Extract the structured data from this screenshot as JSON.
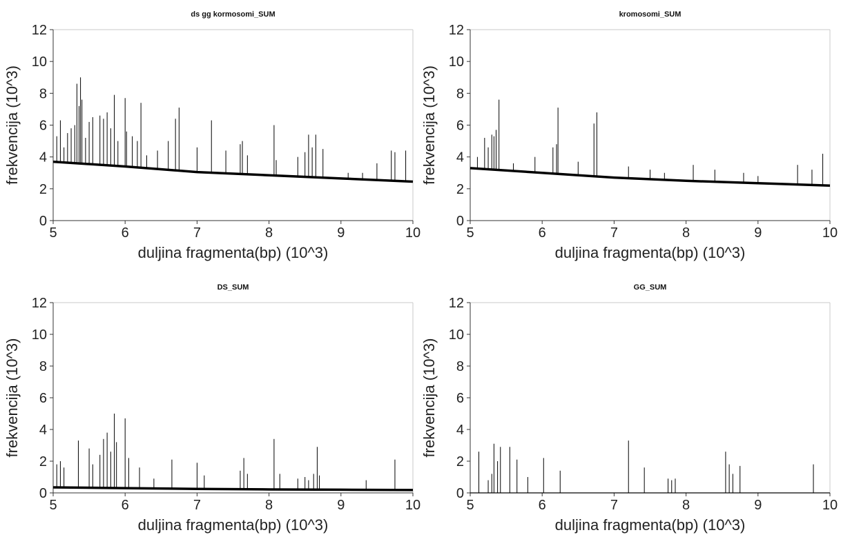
{
  "chart_data": [
    {
      "type": "line",
      "title": "ds gg kormosomi_SUM",
      "xlabel": "duljina fragmenta(bp) (10^3)",
      "ylabel": "frekvencija (10^3)",
      "xlim": [
        5,
        10
      ],
      "ylim": [
        0,
        12
      ],
      "xticks": [
        "5",
        "6",
        "7",
        "8",
        "9",
        "10"
      ],
      "yticks": [
        "0",
        "2",
        "4",
        "6",
        "8",
        "10",
        "12"
      ],
      "grid": false,
      "series": [
        {
          "color": "#000000",
          "baseline": [
            [
              5,
              3.7
            ],
            [
              6,
              3.4
            ],
            [
              7,
              3.05
            ],
            [
              8,
              2.85
            ],
            [
              9,
              2.65
            ],
            [
              10,
              2.45
            ]
          ],
          "peaks": [
            [
              5.05,
              5.3
            ],
            [
              5.1,
              6.3
            ],
            [
              5.15,
              4.6
            ],
            [
              5.2,
              5.5
            ],
            [
              5.25,
              5.8
            ],
            [
              5.3,
              6.0
            ],
            [
              5.33,
              8.6
            ],
            [
              5.36,
              7.2
            ],
            [
              5.38,
              9.0
            ],
            [
              5.4,
              7.6
            ],
            [
              5.45,
              5.2
            ],
            [
              5.5,
              6.2
            ],
            [
              5.55,
              6.5
            ],
            [
              5.65,
              6.6
            ],
            [
              5.7,
              6.4
            ],
            [
              5.75,
              6.8
            ],
            [
              5.8,
              5.8
            ],
            [
              5.85,
              7.9
            ],
            [
              5.9,
              5.0
            ],
            [
              6.0,
              7.7
            ],
            [
              6.02,
              5.6
            ],
            [
              6.1,
              5.3
            ],
            [
              6.17,
              5.0
            ],
            [
              6.22,
              7.4
            ],
            [
              6.3,
              4.1
            ],
            [
              6.45,
              4.4
            ],
            [
              6.6,
              5.0
            ],
            [
              6.7,
              6.4
            ],
            [
              6.75,
              7.1
            ],
            [
              7.0,
              4.6
            ],
            [
              7.2,
              6.3
            ],
            [
              7.4,
              4.4
            ],
            [
              7.6,
              4.8
            ],
            [
              7.63,
              5.0
            ],
            [
              7.7,
              4.1
            ],
            [
              8.07,
              6.0
            ],
            [
              8.1,
              3.8
            ],
            [
              8.4,
              4.0
            ],
            [
              8.5,
              4.3
            ],
            [
              8.55,
              5.4
            ],
            [
              8.6,
              4.6
            ],
            [
              8.65,
              5.4
            ],
            [
              8.75,
              4.5
            ],
            [
              9.1,
              3.0
            ],
            [
              9.3,
              3.0
            ],
            [
              9.5,
              3.6
            ],
            [
              9.7,
              4.4
            ],
            [
              9.75,
              4.3
            ],
            [
              9.9,
              4.4
            ]
          ]
        }
      ]
    },
    {
      "type": "line",
      "title": "kromosomi_SUM",
      "xlabel": "duljina fragmenta(bp) (10^3)",
      "ylabel": "frekvencija (10^3)",
      "xlim": [
        5,
        10
      ],
      "ylim": [
        0,
        12
      ],
      "xticks": [
        "5",
        "6",
        "7",
        "8",
        "9",
        "10"
      ],
      "yticks": [
        "0",
        "2",
        "4",
        "6",
        "8",
        "10",
        "12"
      ],
      "grid": false,
      "series": [
        {
          "color": "#000000",
          "baseline": [
            [
              5,
              3.3
            ],
            [
              6,
              3.0
            ],
            [
              7,
              2.7
            ],
            [
              8,
              2.5
            ],
            [
              9,
              2.35
            ],
            [
              10,
              2.2
            ]
          ],
          "peaks": [
            [
              5.1,
              4.0
            ],
            [
              5.2,
              5.2
            ],
            [
              5.25,
              4.6
            ],
            [
              5.3,
              5.4
            ],
            [
              5.33,
              5.3
            ],
            [
              5.36,
              5.7
            ],
            [
              5.4,
              7.6
            ],
            [
              5.6,
              3.6
            ],
            [
              5.9,
              4.0
            ],
            [
              6.15,
              4.6
            ],
            [
              6.2,
              4.8
            ],
            [
              6.22,
              7.1
            ],
            [
              6.5,
              3.7
            ],
            [
              6.72,
              6.1
            ],
            [
              6.76,
              6.8
            ],
            [
              7.2,
              3.4
            ],
            [
              7.5,
              3.2
            ],
            [
              7.7,
              3.0
            ],
            [
              8.1,
              3.5
            ],
            [
              8.4,
              3.2
            ],
            [
              8.8,
              3.0
            ],
            [
              9.0,
              2.8
            ],
            [
              9.55,
              3.5
            ],
            [
              9.75,
              3.2
            ],
            [
              9.9,
              4.2
            ]
          ]
        }
      ]
    },
    {
      "type": "line",
      "title": "DS_SUM",
      "xlabel": "duljina fragmenta(bp) (10^3)",
      "ylabel": "frekvencija (10^3)",
      "xlim": [
        5,
        10
      ],
      "ylim": [
        0,
        12
      ],
      "xticks": [
        "5",
        "6",
        "7",
        "8",
        "9",
        "10"
      ],
      "yticks": [
        "0",
        "2",
        "4",
        "6",
        "8",
        "10",
        "12"
      ],
      "grid": false,
      "series": [
        {
          "color": "#000000",
          "baseline": [
            [
              5,
              0.35
            ],
            [
              6,
              0.3
            ],
            [
              7,
              0.25
            ],
            [
              8,
              0.22
            ],
            [
              9,
              0.2
            ],
            [
              10,
              0.18
            ]
          ],
          "peaks": [
            [
              5.05,
              1.8
            ],
            [
              5.1,
              2.0
            ],
            [
              5.15,
              1.6
            ],
            [
              5.35,
              3.3
            ],
            [
              5.5,
              2.8
            ],
            [
              5.55,
              1.8
            ],
            [
              5.65,
              2.4
            ],
            [
              5.7,
              3.4
            ],
            [
              5.75,
              3.8
            ],
            [
              5.8,
              2.6
            ],
            [
              5.85,
              5.0
            ],
            [
              5.88,
              3.2
            ],
            [
              6.0,
              4.7
            ],
            [
              6.05,
              2.2
            ],
            [
              6.2,
              1.6
            ],
            [
              6.4,
              0.9
            ],
            [
              6.65,
              2.1
            ],
            [
              7.0,
              1.9
            ],
            [
              7.1,
              1.1
            ],
            [
              7.6,
              1.4
            ],
            [
              7.65,
              2.2
            ],
            [
              7.7,
              1.2
            ],
            [
              8.07,
              3.4
            ],
            [
              8.15,
              1.2
            ],
            [
              8.4,
              0.9
            ],
            [
              8.5,
              1.0
            ],
            [
              8.55,
              0.8
            ],
            [
              8.62,
              1.2
            ],
            [
              8.67,
              2.9
            ],
            [
              8.7,
              1.1
            ],
            [
              9.35,
              0.8
            ],
            [
              9.75,
              2.1
            ]
          ]
        }
      ]
    },
    {
      "type": "line",
      "title": "GG_SUM",
      "xlabel": "duljina fragmenta(bp) (10^3)",
      "ylabel": "frekvencija (10^3)",
      "xlim": [
        5,
        10
      ],
      "ylim": [
        0,
        12
      ],
      "xticks": [
        "5",
        "6",
        "7",
        "8",
        "9",
        "10"
      ],
      "yticks": [
        "0",
        "2",
        "4",
        "6",
        "8",
        "10",
        "12"
      ],
      "grid": false,
      "series": [
        {
          "color": "#000000",
          "baseline": [
            [
              5,
              0.0
            ],
            [
              10,
              0.0
            ]
          ],
          "peaks": [
            [
              5.12,
              2.6
            ],
            [
              5.25,
              0.8
            ],
            [
              5.3,
              1.2
            ],
            [
              5.33,
              3.1
            ],
            [
              5.38,
              2.0
            ],
            [
              5.42,
              2.9
            ],
            [
              5.55,
              2.9
            ],
            [
              5.65,
              2.1
            ],
            [
              5.8,
              1.0
            ],
            [
              6.02,
              2.2
            ],
            [
              6.25,
              1.4
            ],
            [
              7.2,
              3.3
            ],
            [
              7.42,
              1.6
            ],
            [
              7.75,
              0.9
            ],
            [
              7.8,
              0.8
            ],
            [
              7.85,
              0.9
            ],
            [
              8.55,
              2.6
            ],
            [
              8.6,
              1.8
            ],
            [
              8.65,
              1.2
            ],
            [
              8.75,
              1.7
            ],
            [
              9.77,
              1.8
            ]
          ]
        }
      ]
    }
  ]
}
